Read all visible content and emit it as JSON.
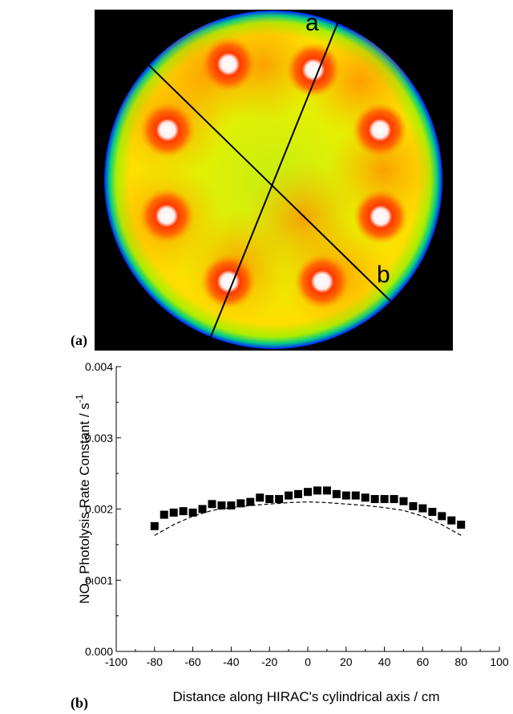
{
  "panels": {
    "a_label": "(a)",
    "b_label": "(b)",
    "line_a_label": "a",
    "line_b_label": "b"
  },
  "colors": {
    "background": "#ffffff",
    "axis": "#000000",
    "marker": "#000000",
    "dashed_line": "#000000",
    "heatmap_outer": "#0000ff",
    "heatmap_bright": "#ffffff",
    "heatmap_hot": "#ff3300",
    "heatmap_mid": "#ffcc00",
    "heatmap_low": "#66dd00"
  },
  "chart_data": {
    "type": "scatter",
    "xlabel": "Distance along HIRAC's cylindrical axis / cm",
    "ylabel": {
      "prefix": "NO",
      "sub": "2",
      "mid": " Photolysis Rate Constant / s",
      "sup": "-1"
    },
    "xlim": [
      -100,
      100
    ],
    "ylim": [
      0.0,
      0.004
    ],
    "xticks": [
      "-100",
      "-80",
      "-60",
      "-40",
      "-20",
      "0",
      "20",
      "40",
      "60",
      "80",
      "100"
    ],
    "xtick_values": [
      -100,
      -80,
      -60,
      -40,
      -20,
      0,
      20,
      40,
      60,
      80,
      100
    ],
    "yticks": [
      "0.000",
      "0.001",
      "0.002",
      "0.003",
      "0.004"
    ],
    "ytick_values": [
      0.0,
      0.001,
      0.002,
      0.003,
      0.004
    ],
    "grid": false,
    "series": [
      {
        "marker": "square",
        "x": [
          -80,
          -75,
          -70,
          -65,
          -60,
          -55,
          -50,
          -45,
          -40,
          -35,
          -30,
          -25,
          -20,
          -15,
          -10,
          -5,
          0,
          5,
          10,
          15,
          20,
          25,
          30,
          35,
          40,
          45,
          50,
          55,
          60,
          65,
          70,
          75,
          80
        ],
        "y": [
          0.00176,
          0.00192,
          0.00195,
          0.00197,
          0.00195,
          0.002,
          0.00207,
          0.00205,
          0.00205,
          0.00208,
          0.0021,
          0.00216,
          0.00214,
          0.00214,
          0.00219,
          0.00221,
          0.00224,
          0.00226,
          0.00226,
          0.00221,
          0.00219,
          0.00219,
          0.00216,
          0.00214,
          0.00214,
          0.00214,
          0.00211,
          0.00204,
          0.00201,
          0.00196,
          0.0019,
          0.00184,
          0.00178
        ]
      },
      {
        "style": "dashed",
        "x": [
          -80,
          -70,
          -60,
          -50,
          -40,
          -30,
          -20,
          -10,
          0,
          10,
          20,
          30,
          40,
          50,
          60,
          70,
          80
        ],
        "y": [
          0.00163,
          0.00178,
          0.0019,
          0.00198,
          0.00202,
          0.00205,
          0.00207,
          0.00209,
          0.0021,
          0.00209,
          0.00207,
          0.00205,
          0.00202,
          0.00198,
          0.0019,
          0.00178,
          0.00163
        ]
      }
    ]
  }
}
